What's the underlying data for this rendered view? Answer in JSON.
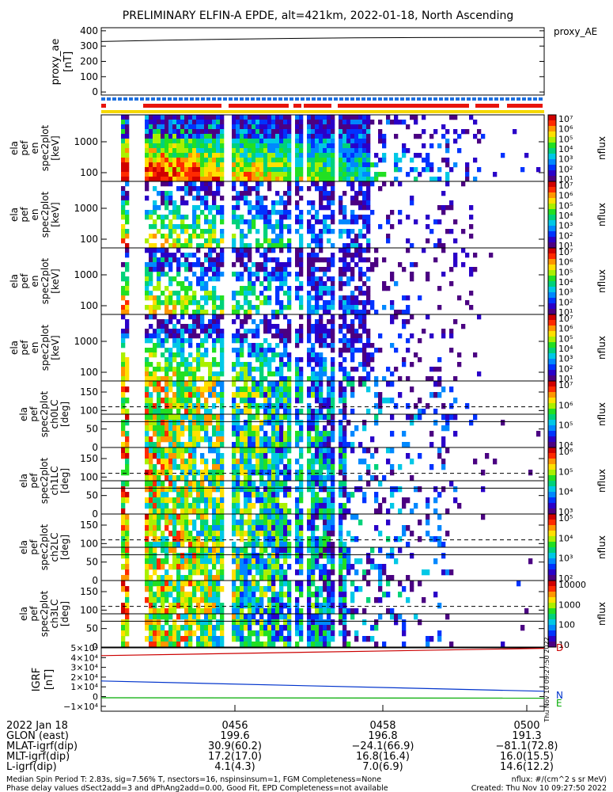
{
  "header": {
    "title": "PRELIMINARY ELFIN-A EPDE, alt=421km, 2022-01-18, North Ascending",
    "proxy_label": "proxy_AE"
  },
  "chart_data": [
    {
      "type": "line",
      "panel": "proxy_ae",
      "ylabel": [
        "proxy_ae",
        "[nT]"
      ],
      "yticks": [
        "400",
        "300",
        "200",
        "100",
        "0"
      ],
      "ylim": [
        -20,
        420
      ],
      "series": [
        {
          "values": [
            330,
            338,
            345,
            350,
            354,
            356,
            357,
            357
          ]
        }
      ],
      "color": "#000000"
    },
    {
      "type": "heatmap",
      "panel": "energy",
      "count": 4,
      "ylabel": [
        "ela",
        "pef",
        "en",
        "spec2plot",
        "[keV]"
      ],
      "yticks": [
        "1000",
        "100"
      ],
      "colorbar": {
        "label": "nflux",
        "ticks": [
          "10⁷",
          "10⁶",
          "10⁵",
          "10⁴",
          "10³",
          "10²",
          "10¹"
        ]
      }
    },
    {
      "type": "heatmap",
      "panel": "pitch_angle",
      "ylabels": [
        [
          "ela",
          "pef",
          "spec2plot",
          "ch0LC",
          "[deg]"
        ],
        [
          "ela",
          "pef",
          "spec2plot",
          "ch1LC",
          "[deg]"
        ],
        [
          "ela",
          "pef",
          "spec2plot",
          "ch2LC",
          "[deg]"
        ],
        [
          "ela",
          "pef",
          "spec2plot",
          "ch3LC",
          "[deg]"
        ]
      ],
      "yticks": [
        "150",
        "100",
        "50",
        "0"
      ],
      "ylim": [
        0,
        180
      ],
      "colorbars": [
        [
          "10⁷",
          "10⁶",
          "10⁵",
          "10⁴"
        ],
        [
          "10⁶",
          "10⁵",
          "10⁴",
          "10³"
        ],
        [
          "10⁵",
          "10⁴",
          "10³",
          "10²"
        ],
        [
          "10000",
          "1000",
          "100",
          "10"
        ]
      ]
    },
    {
      "type": "line",
      "panel": "igrf",
      "ylabel": [
        "IGRF",
        "[nT]"
      ],
      "yticks": [
        "5×10⁴",
        "4×10⁴",
        "3×10⁴",
        "2×10⁴",
        "1×10⁴",
        "0",
        "−1×10⁴"
      ],
      "ylim": [
        -15000,
        50000
      ],
      "series": [
        {
          "name": "D",
          "color": "#cc0000",
          "values": [
            42000,
            49500
          ]
        },
        {
          "name": "N",
          "color": "#0033cc",
          "values": [
            16000,
            5500
          ]
        },
        {
          "name": "E",
          "color": "#00aa00",
          "values": [
            -1200,
            -1600
          ]
        }
      ]
    }
  ],
  "orbit_table": {
    "time_ticks": [
      "0456",
      "0458",
      "0500"
    ],
    "rows": [
      {
        "label": "2022 Jan 18",
        "values": [
          "0456",
          "0458",
          "0500"
        ]
      },
      {
        "label": "GLON (east)",
        "values": [
          "199.6",
          "196.8",
          "191.3"
        ]
      },
      {
        "label": "MLAT-igrf(dip)",
        "values": [
          "30.9(60.2)",
          "−24.1(66.9)",
          "−81.1(72.8)"
        ]
      },
      {
        "label": "MLT-igrf(dip)",
        "values": [
          "17.2(17.0)",
          "16.8(16.4)",
          "16.0(15.5)"
        ]
      },
      {
        "label": "L-igrf(dip)",
        "values": [
          "4.1(4.3)",
          "7.0(6.9)",
          "14.6(12.2)"
        ]
      }
    ]
  },
  "footer": {
    "line1_left": "Median Spin Period T: 2.83s, sig=7.56% T, nsectors=16, nspinsinsum=1, FGM Completeness=None",
    "line2_left": "Phase delay values dSect2add=3 and dPhAng2add=0.00, Good Fit, EPD Completeness=not available",
    "line1_right": "nflux: #/(cm^2 s sr MeV)",
    "line2_right": "Created: Thu Nov 10 09:27:50 2022",
    "vertical_stamp": "Thu Nov 10 09:27:50 2022"
  }
}
